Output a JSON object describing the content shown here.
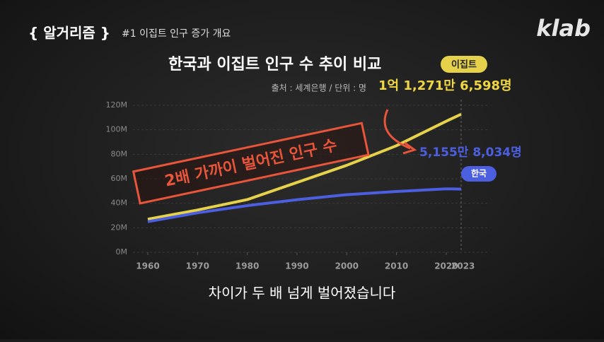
{
  "header": {
    "series_tag": "{ 알거리즘 }",
    "episode": "#1 이집트 인구 증가 개요",
    "logo": "klab"
  },
  "caption": "차이가 두 배 넘게 벌어졌습니다",
  "chart_data": {
    "type": "line",
    "title": "한국과 이집트 인구 수 추이 비교",
    "subtitle": "출처 : 세계은행 / 단위 : 명",
    "annotation": "2배 가까이 벌어진 인구 수",
    "x": [
      1960,
      1970,
      1980,
      1990,
      2000,
      2010,
      2020,
      2023
    ],
    "series": [
      {
        "name": "이집트",
        "color": "#e6d24a",
        "values": [
          27000000,
          34500000,
          43000000,
          57000000,
          71000000,
          87000000,
          107000000,
          112716598
        ],
        "value_labels": [
          null,
          null,
          null,
          null,
          null,
          null,
          null,
          "1억 1,271만 6,598명"
        ]
      },
      {
        "name": "한국",
        "color": "#4b5fe0",
        "values": [
          25000000,
          32200000,
          38100000,
          42900000,
          47000000,
          49600000,
          51800000,
          51558034
        ],
        "value_labels": [
          null,
          null,
          null,
          null,
          null,
          null,
          null,
          "5,155만 8,034명"
        ]
      }
    ],
    "xlim": [
      1960,
      2023
    ],
    "xticks": [
      1960,
      1970,
      1980,
      1990,
      2000,
      2010,
      2020,
      2023
    ],
    "ylim": [
      0,
      120000000
    ],
    "yticks": [
      {
        "value": 0,
        "label": "0M"
      },
      {
        "value": 20000000,
        "label": "20M"
      },
      {
        "value": 40000000,
        "label": "40M"
      },
      {
        "value": 60000000,
        "label": "60M"
      },
      {
        "value": 80000000,
        "label": "80M"
      },
      {
        "value": 100000000,
        "label": "100M"
      },
      {
        "value": 120000000,
        "label": "120M"
      }
    ],
    "grid": true
  }
}
